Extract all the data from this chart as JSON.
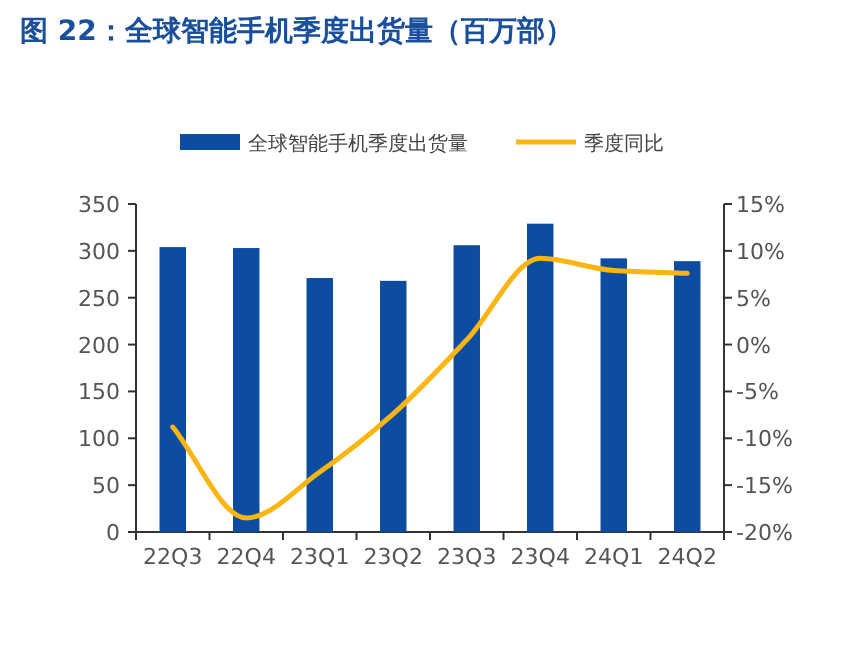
{
  "chart_data": {
    "type": "bar",
    "title": "图 22：全球智能手机季度出货量（百万部）",
    "categories": [
      "22Q3",
      "22Q4",
      "23Q1",
      "23Q2",
      "23Q3",
      "23Q4",
      "24Q1",
      "24Q2"
    ],
    "series": [
      {
        "name": "全球智能手机季度出货量",
        "color": "#0c4da2",
        "values": [
          304,
          303,
          271,
          268,
          306,
          329,
          292,
          289
        ]
      },
      {
        "name": "季度同比",
        "type": "line",
        "axis": "y2",
        "color": "#fbb511",
        "values": [
          -8.8,
          -18.5,
          -13.6,
          -7.4,
          0.5,
          9.2,
          7.9,
          7.6
        ]
      }
    ],
    "ylim": [
      0,
      350
    ],
    "yticks": [
      0,
      50,
      100,
      150,
      200,
      250,
      300,
      350
    ],
    "y2lim": [
      -20,
      15
    ],
    "y2ticks": [
      {
        "value": -20,
        "label": "-20%"
      },
      {
        "value": -15,
        "label": "-15%"
      },
      {
        "value": -10,
        "label": "-10%"
      },
      {
        "value": -5,
        "label": "-5%"
      },
      {
        "value": 0,
        "label": "0%"
      },
      {
        "value": 5,
        "label": "5%"
      },
      {
        "value": 10,
        "label": "10%"
      },
      {
        "value": 15,
        "label": "15%"
      }
    ],
    "grid": false,
    "legend": "top",
    "marker": "none",
    "line_style": "solid"
  }
}
